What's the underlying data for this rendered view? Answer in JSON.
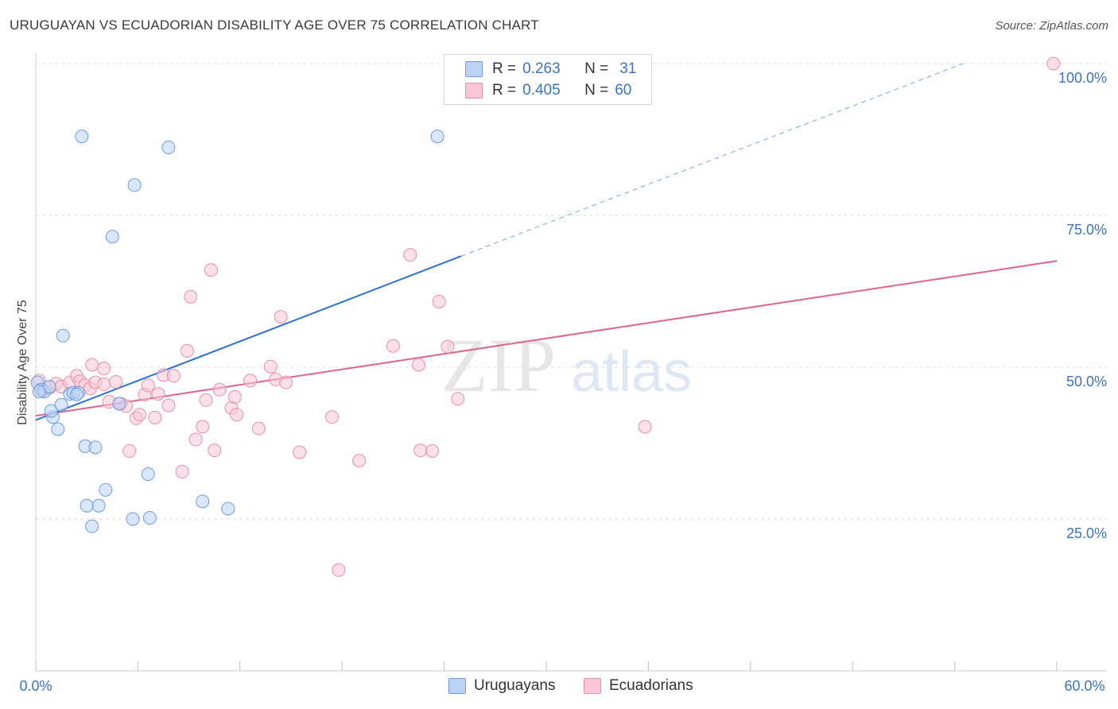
{
  "title": "URUGUAYAN VS ECUADORIAN DISABILITY AGE OVER 75 CORRELATION CHART",
  "source": "Source: ZipAtlas.com",
  "watermark": {
    "zip": "ZIP",
    "atlas": "atlas"
  },
  "colors": {
    "uruguayan_fill": "#bcd3f5",
    "uruguayan_stroke": "#6d9ce0",
    "uruguayan_line": "#2b72d2",
    "ecuadorian_fill": "#f8c6d4",
    "ecuadorian_stroke": "#ea8eab",
    "ecuadorian_line": "#e0628d",
    "tick_label": "#3a74c4",
    "grid": "#dddddd"
  },
  "legend": {
    "rows": [
      {
        "r_label": "R =",
        "r_value": "0.263",
        "n_label": "N =",
        "n_value": "31"
      },
      {
        "r_label": "R =",
        "r_value": "0.405",
        "n_label": "N =",
        "n_value": "60"
      }
    ]
  },
  "bottom_legend": {
    "uruguayans": "Uruguayans",
    "ecuadorians": "Ecuadorians"
  },
  "chart_data": {
    "type": "scatter",
    "title": "URUGUAYAN VS ECUADORIAN DISABILITY AGE OVER 75 CORRELATION CHART",
    "xlabel": "",
    "ylabel": "Disability Age Over 75",
    "xlim": [
      0,
      60
    ],
    "ylim": [
      0,
      102
    ],
    "x_tick_labels": [
      "0.0%",
      "60.0%"
    ],
    "y_tick_labels": [
      "100.0%",
      "75.0%",
      "50.0%",
      "25.0%"
    ],
    "y_ticks": [
      100,
      75,
      50,
      25
    ],
    "grid": true,
    "series": [
      {
        "name": "Uruguayans",
        "r": 0.263,
        "n": 31,
        "trend": {
          "x0": 0,
          "y0": 41.3,
          "x1": 25.0,
          "y1": 68.3,
          "dashed_to_x": 54.5,
          "dashed_to_y": 100
        },
        "points": [
          [
            0.1,
            47.5
          ],
          [
            0.3,
            46.3
          ],
          [
            0.5,
            46.0
          ],
          [
            0.8,
            46.8
          ],
          [
            1.0,
            41.8
          ],
          [
            0.9,
            42.8
          ],
          [
            1.3,
            39.8
          ],
          [
            1.5,
            43.8
          ],
          [
            2.0,
            45.6
          ],
          [
            2.2,
            45.8
          ],
          [
            2.5,
            45.8
          ],
          [
            2.7,
            88.0
          ],
          [
            2.9,
            37.0
          ],
          [
            3.0,
            27.2
          ],
          [
            3.3,
            23.8
          ],
          [
            3.5,
            36.8
          ],
          [
            3.7,
            27.2
          ],
          [
            4.1,
            29.8
          ],
          [
            4.5,
            71.5
          ],
          [
            4.9,
            44.0
          ],
          [
            5.7,
            25.0
          ],
          [
            5.8,
            80.0
          ],
          [
            6.6,
            32.4
          ],
          [
            6.7,
            25.2
          ],
          [
            7.8,
            86.2
          ],
          [
            9.8,
            27.9
          ],
          [
            11.3,
            26.7
          ],
          [
            23.6,
            88.0
          ],
          [
            1.6,
            55.2
          ],
          [
            0.2,
            46.0
          ],
          [
            2.4,
            45.5
          ]
        ]
      },
      {
        "name": "Ecuadorians",
        "r": 0.405,
        "n": 60,
        "trend": {
          "x0": 0,
          "y0": 42.0,
          "x1": 60,
          "y1": 67.5
        },
        "points": [
          [
            0.2,
            47.8
          ],
          [
            0.4,
            46.2
          ],
          [
            0.8,
            46.6
          ],
          [
            1.2,
            47.3
          ],
          [
            1.5,
            46.8
          ],
          [
            2.0,
            47.5
          ],
          [
            2.4,
            48.6
          ],
          [
            2.6,
            47.7
          ],
          [
            2.9,
            47.0
          ],
          [
            3.2,
            46.5
          ],
          [
            3.3,
            50.4
          ],
          [
            3.5,
            47.5
          ],
          [
            4.0,
            47.2
          ],
          [
            4.0,
            49.8
          ],
          [
            4.3,
            44.3
          ],
          [
            4.7,
            47.6
          ],
          [
            5.0,
            44.0
          ],
          [
            5.3,
            43.6
          ],
          [
            5.5,
            36.2
          ],
          [
            5.9,
            41.6
          ],
          [
            6.1,
            42.2
          ],
          [
            6.4,
            45.5
          ],
          [
            6.6,
            47.0
          ],
          [
            7.0,
            41.7
          ],
          [
            7.2,
            45.6
          ],
          [
            7.5,
            48.7
          ],
          [
            7.8,
            43.7
          ],
          [
            8.1,
            48.6
          ],
          [
            8.6,
            32.8
          ],
          [
            8.9,
            52.7
          ],
          [
            9.1,
            61.6
          ],
          [
            9.4,
            38.1
          ],
          [
            9.8,
            40.2
          ],
          [
            10.0,
            44.6
          ],
          [
            10.3,
            66.0
          ],
          [
            10.5,
            36.3
          ],
          [
            10.8,
            46.3
          ],
          [
            11.5,
            43.3
          ],
          [
            11.7,
            45.1
          ],
          [
            11.8,
            42.2
          ],
          [
            12.6,
            47.8
          ],
          [
            13.1,
            39.9
          ],
          [
            13.8,
            50.1
          ],
          [
            14.1,
            48.0
          ],
          [
            14.4,
            58.3
          ],
          [
            14.7,
            47.5
          ],
          [
            15.5,
            36.0
          ],
          [
            17.4,
            41.8
          ],
          [
            17.8,
            16.6
          ],
          [
            19.0,
            34.6
          ],
          [
            21.0,
            53.5
          ],
          [
            22.0,
            68.5
          ],
          [
            22.5,
            50.4
          ],
          [
            22.6,
            36.3
          ],
          [
            23.3,
            36.2
          ],
          [
            23.7,
            60.8
          ],
          [
            24.2,
            53.4
          ],
          [
            24.8,
            44.8
          ],
          [
            35.8,
            40.2
          ],
          [
            59.8,
            100.0
          ]
        ]
      }
    ]
  }
}
